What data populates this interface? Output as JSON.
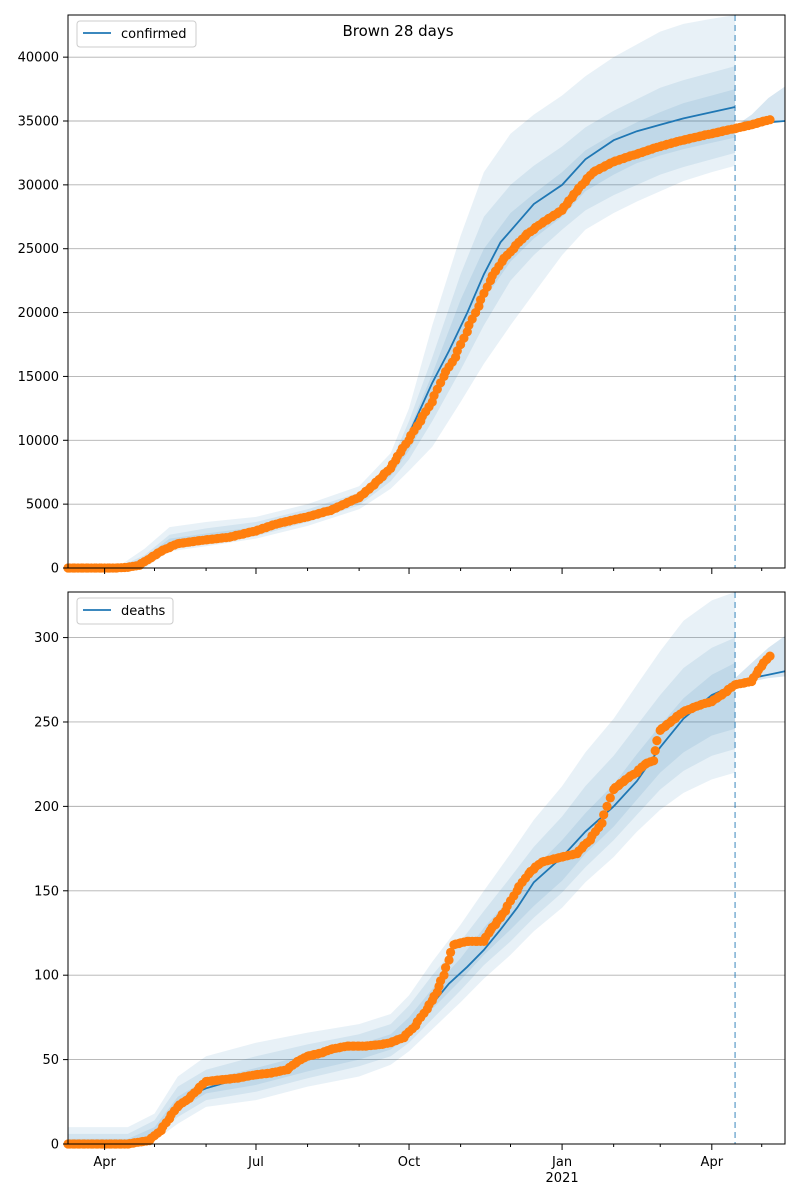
{
  "figure": {
    "title": "Brown 28 days",
    "colors": {
      "model": "#1f77b4",
      "observed": "#ff7f0e",
      "band": "#1f77b4",
      "grid": "#b0b0b0",
      "forecast_line": "#1f77b4"
    }
  },
  "x_axis": {
    "start_date": "2020-03-10",
    "end_date": "2021-05-15",
    "major_ticks": [
      {
        "date": "2020-04-01",
        "label": "Apr"
      },
      {
        "date": "2020-07-01",
        "label": "Jul"
      },
      {
        "date": "2020-10-01",
        "label": "Oct"
      },
      {
        "date": "2021-01-01",
        "label": "Jan",
        "sublabel": "2021"
      },
      {
        "date": "2021-04-01",
        "label": "Apr"
      }
    ],
    "minor_ticks": [
      "2020-05-01",
      "2020-06-01",
      "2020-08-01",
      "2020-09-01",
      "2020-11-01",
      "2020-12-01",
      "2021-02-01",
      "2021-03-01",
      "2021-05-01"
    ],
    "forecast_date": "2021-04-15"
  },
  "chart_data": [
    {
      "type": "line",
      "name": "confirmed-panel",
      "legend": "confirmed",
      "legend_position": "top-left",
      "grid": "y",
      "ylim": [
        0,
        43300
      ],
      "yticks": [
        0,
        5000,
        10000,
        15000,
        20000,
        25000,
        30000,
        35000,
        40000
      ],
      "model": {
        "x": [
          "2020-03-10",
          "2020-03-25",
          "2020-04-08",
          "2020-04-20",
          "2020-05-01",
          "2020-05-10",
          "2020-05-20",
          "2020-06-01",
          "2020-06-20",
          "2020-07-01",
          "2020-07-15",
          "2020-08-01",
          "2020-08-15",
          "2020-09-01",
          "2020-09-15",
          "2020-09-25",
          "2020-10-01",
          "2020-10-08",
          "2020-10-15",
          "2020-10-25",
          "2020-11-05",
          "2020-11-15",
          "2020-11-25",
          "2020-12-05",
          "2020-12-15",
          "2021-01-01",
          "2021-01-15",
          "2021-02-01",
          "2021-02-15",
          "2021-03-01",
          "2021-03-15",
          "2021-04-01",
          "2021-04-15"
        ],
        "y": [
          0,
          0,
          0,
          200,
          1000,
          1800,
          2100,
          2300,
          2600,
          2900,
          3400,
          4100,
          4700,
          5500,
          7200,
          9000,
          10500,
          12500,
          14500,
          17000,
          20000,
          23000,
          25500,
          27000,
          28500,
          30000,
          32000,
          33500,
          34200,
          34700,
          35200,
          35700,
          36100
        ]
      },
      "observed": {
        "x": [
          "2020-03-10",
          "2020-04-08",
          "2020-04-15",
          "2020-04-22",
          "2020-04-29",
          "2020-05-05",
          "2020-05-15",
          "2020-06-01",
          "2020-06-15",
          "2020-07-01",
          "2020-07-15",
          "2020-08-01",
          "2020-08-15",
          "2020-09-01",
          "2020-09-10",
          "2020-09-20",
          "2020-10-01",
          "2020-10-08",
          "2020-10-15",
          "2020-10-22",
          "2020-10-29",
          "2020-11-05",
          "2020-11-12",
          "2020-11-19",
          "2020-11-26",
          "2020-12-03",
          "2020-12-10",
          "2020-12-20",
          "2021-01-01",
          "2021-01-10",
          "2021-01-20",
          "2021-02-01",
          "2021-02-15",
          "2021-03-01",
          "2021-03-15",
          "2021-04-01",
          "2021-04-15",
          "2021-04-25",
          "2021-05-06"
        ],
        "y": [
          0,
          0,
          50,
          200,
          800,
          1300,
          1900,
          2200,
          2400,
          2900,
          3500,
          4000,
          4500,
          5500,
          6500,
          7800,
          10000,
          11500,
          13000,
          15000,
          16500,
          18500,
          20500,
          22500,
          24000,
          25000,
          26000,
          27000,
          28000,
          29500,
          31000,
          31800,
          32400,
          33000,
          33500,
          34000,
          34400,
          34700,
          35100
        ]
      },
      "bands": {
        "x": [
          "2020-03-10",
          "2020-04-08",
          "2020-04-25",
          "2020-05-10",
          "2020-06-01",
          "2020-07-01",
          "2020-08-01",
          "2020-09-01",
          "2020-09-20",
          "2020-10-01",
          "2020-10-15",
          "2020-11-01",
          "2020-11-15",
          "2020-12-01",
          "2020-12-15",
          "2021-01-01",
          "2021-01-15",
          "2021-02-01",
          "2021-02-15",
          "2021-03-01",
          "2021-03-15",
          "2021-04-01",
          "2021-04-15"
        ],
        "outer_low": [
          0,
          0,
          0,
          1300,
          1700,
          2300,
          3300,
          4600,
          6200,
          7600,
          9500,
          13000,
          16000,
          19000,
          21500,
          24500,
          26500,
          27800,
          28700,
          29500,
          30300,
          31000,
          31500
        ],
        "outer_high": [
          0,
          0,
          1500,
          3200,
          3600,
          4000,
          5000,
          6400,
          9000,
          12500,
          19000,
          26000,
          31000,
          34000,
          35500,
          37000,
          38500,
          40000,
          41000,
          42000,
          42600,
          43000,
          43300
        ],
        "mid_low": [
          0,
          0,
          300,
          1600,
          1900,
          2500,
          3600,
          4900,
          6800,
          8500,
          11500,
          15500,
          19000,
          22500,
          24500,
          26500,
          28000,
          29200,
          30000,
          30800,
          31400,
          32000,
          32500
        ],
        "mid_high": [
          0,
          0,
          1000,
          2600,
          3100,
          3600,
          4600,
          5900,
          8200,
          11500,
          16500,
          23000,
          27500,
          30000,
          31500,
          33000,
          34500,
          35800,
          36700,
          37600,
          38200,
          38800,
          39300
        ],
        "inner_low": [
          0,
          0,
          500,
          1700,
          2100,
          2700,
          3800,
          5100,
          7200,
          9200,
          12500,
          17000,
          21000,
          24000,
          25800,
          27500,
          29500,
          30800,
          31700,
          32300,
          32800,
          33300,
          33700
        ],
        "inner_high": [
          0,
          0,
          800,
          2300,
          2700,
          3200,
          4300,
          5600,
          7800,
          10800,
          15200,
          21000,
          25000,
          27800,
          29300,
          31000,
          32700,
          34000,
          34900,
          35700,
          36400,
          37000,
          37500
        ],
        "future_x": [
          "2021-04-15",
          "2021-04-25",
          "2021-05-05",
          "2021-05-15"
        ],
        "future_low": [
          34200,
          34500,
          34800,
          35000
        ],
        "future_high": [
          34600,
          35500,
          36800,
          37700
        ],
        "future_model": [
          34400,
          34700,
          34900,
          35000
        ]
      }
    },
    {
      "type": "line",
      "name": "deaths-panel",
      "legend": "deaths",
      "legend_position": "top-left",
      "grid": "y",
      "ylim": [
        0,
        327
      ],
      "yticks": [
        0,
        50,
        100,
        150,
        200,
        250,
        300
      ],
      "model": {
        "x": [
          "2020-03-10",
          "2020-04-15",
          "2020-04-25",
          "2020-05-05",
          "2020-05-12",
          "2020-05-20",
          "2020-06-01",
          "2020-06-15",
          "2020-07-01",
          "2020-07-15",
          "2020-08-01",
          "2020-08-15",
          "2020-09-01",
          "2020-09-15",
          "2020-09-25",
          "2020-10-05",
          "2020-10-15",
          "2020-10-25",
          "2020-11-05",
          "2020-11-15",
          "2020-11-25",
          "2020-12-05",
          "2020-12-15",
          "2021-01-01",
          "2021-01-15",
          "2021-02-01",
          "2021-02-15",
          "2021-03-01",
          "2021-03-15",
          "2021-04-01",
          "2021-04-15"
        ],
        "y": [
          0,
          0,
          2,
          10,
          20,
          28,
          33,
          37,
          41,
          44,
          50,
          54,
          58,
          60,
          63,
          70,
          83,
          95,
          105,
          115,
          127,
          140,
          155,
          170,
          185,
          200,
          215,
          235,
          252,
          266,
          272
        ]
      },
      "observed": {
        "x": [
          "2020-03-10",
          "2020-04-15",
          "2020-04-28",
          "2020-05-05",
          "2020-05-10",
          "2020-05-15",
          "2020-05-22",
          "2020-06-01",
          "2020-06-10",
          "2020-06-20",
          "2020-07-01",
          "2020-07-10",
          "2020-07-20",
          "2020-07-25",
          "2020-08-01",
          "2020-08-10",
          "2020-08-15",
          "2020-08-25",
          "2020-09-05",
          "2020-09-15",
          "2020-09-20",
          "2020-09-28",
          "2020-10-05",
          "2020-10-12",
          "2020-10-18",
          "2020-10-22",
          "2020-10-28",
          "2020-11-05",
          "2020-11-10",
          "2020-11-15",
          "2020-11-18",
          "2020-11-22",
          "2020-11-28",
          "2020-12-05",
          "2020-12-12",
          "2020-12-20",
          "2021-01-01",
          "2021-01-10",
          "2021-01-18",
          "2021-01-25",
          "2021-02-01",
          "2021-02-10",
          "2021-02-15",
          "2021-02-20",
          "2021-02-25",
          "2021-03-01",
          "2021-03-10",
          "2021-03-15",
          "2021-03-25",
          "2021-04-01",
          "2021-04-10",
          "2021-04-15",
          "2021-04-25",
          "2021-05-01",
          "2021-05-06"
        ],
        "y": [
          0,
          0,
          2,
          8,
          15,
          22,
          27,
          37,
          38,
          39,
          41,
          42,
          44,
          48,
          52,
          54,
          56,
          58,
          58,
          59,
          60,
          63,
          70,
          80,
          90,
          100,
          118,
          120,
          120,
          120,
          125,
          130,
          138,
          150,
          160,
          167,
          170,
          172,
          180,
          190,
          210,
          217,
          220,
          225,
          227,
          245,
          252,
          256,
          260,
          262,
          268,
          272,
          274,
          283,
          289
        ]
      },
      "bands": {
        "x": [
          "2020-03-10",
          "2020-04-15",
          "2020-05-01",
          "2020-05-15",
          "2020-06-01",
          "2020-07-01",
          "2020-08-01",
          "2020-09-01",
          "2020-09-20",
          "2020-10-01",
          "2020-10-15",
          "2020-11-01",
          "2020-11-15",
          "2020-12-01",
          "2020-12-15",
          "2021-01-01",
          "2021-01-15",
          "2021-02-01",
          "2021-02-15",
          "2021-03-01",
          "2021-03-15",
          "2021-04-01",
          "2021-04-15"
        ],
        "outer_low": [
          0,
          0,
          2,
          12,
          22,
          26,
          34,
          40,
          47,
          55,
          68,
          84,
          98,
          112,
          126,
          140,
          155,
          170,
          185,
          198,
          208,
          216,
          220
        ],
        "outer_high": [
          10,
          10,
          18,
          40,
          52,
          60,
          66,
          71,
          77,
          88,
          108,
          130,
          150,
          172,
          192,
          212,
          232,
          252,
          272,
          292,
          310,
          322,
          327
        ],
        "mid_low": [
          0,
          0,
          4,
          16,
          26,
          31,
          39,
          46,
          52,
          60,
          74,
          91,
          106,
          120,
          134,
          149,
          164,
          180,
          195,
          210,
          221,
          230,
          234
        ],
        "mid_high": [
          6,
          6,
          14,
          34,
          44,
          52,
          59,
          65,
          71,
          82,
          100,
          120,
          138,
          158,
          176,
          194,
          212,
          230,
          248,
          266,
          282,
          294,
          300
        ],
        "inner_low": [
          0,
          0,
          6,
          20,
          30,
          35,
          43,
          50,
          56,
          64,
          80,
          97,
          112,
          127,
          141,
          156,
          172,
          188,
          204,
          220,
          232,
          242,
          246
        ],
        "inner_high": [
          3,
          3,
          10,
          28,
          38,
          45,
          53,
          59,
          65,
          75,
          92,
          110,
          128,
          146,
          163,
          180,
          196,
          213,
          231,
          248,
          264,
          278,
          285
        ],
        "future_x": [
          "2021-04-15",
          "2021-04-25",
          "2021-05-05",
          "2021-05-15"
        ],
        "future_low": [
          272,
          274,
          276,
          277
        ],
        "future_high": [
          276,
          285,
          294,
          301
        ],
        "future_model": [
          273,
          276,
          278,
          280
        ]
      }
    }
  ]
}
